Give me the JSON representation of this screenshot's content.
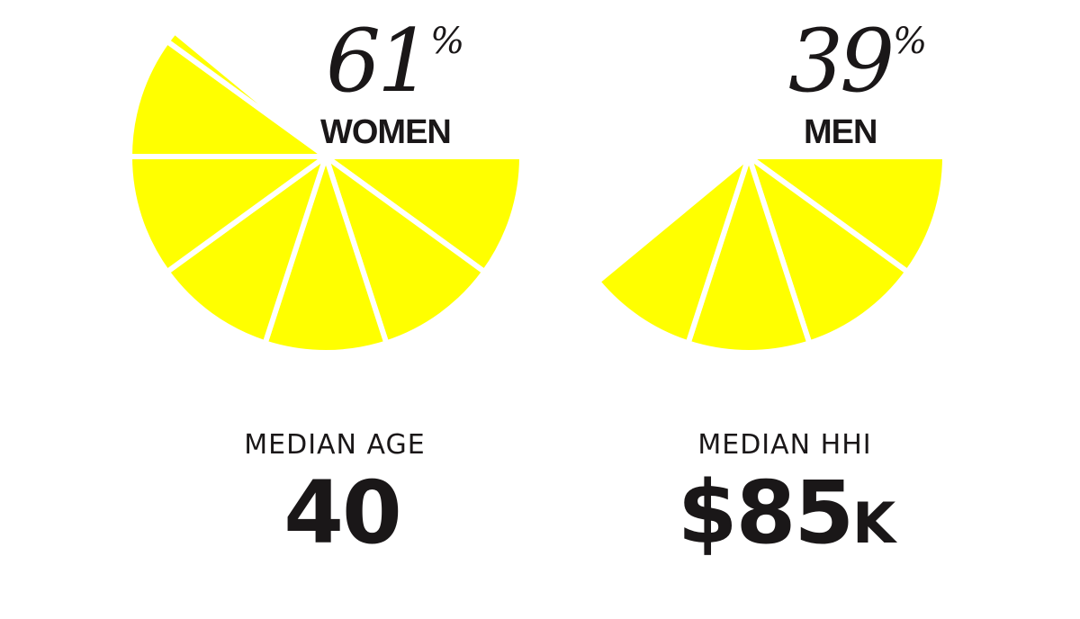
{
  "colors": {
    "slice": "#ffff00",
    "text": "#1a1718",
    "background": "#ffffff",
    "divider": "#ffffff"
  },
  "chart_data": [
    {
      "type": "pie",
      "slices_total": 10,
      "slices_filled": 6.1,
      "value": 61,
      "value_text": "61",
      "unit": "%",
      "label": "WOMEN"
    },
    {
      "type": "pie",
      "slices_total": 10,
      "slices_filled": 3.9,
      "value": 39,
      "value_text": "39",
      "unit": "%",
      "label": "MEN"
    }
  ],
  "stats": [
    {
      "label": "MEDIAN AGE",
      "value": "40",
      "suffix": ""
    },
    {
      "label": "MEDIAN HHI",
      "value": "$85",
      "suffix": "K"
    }
  ]
}
